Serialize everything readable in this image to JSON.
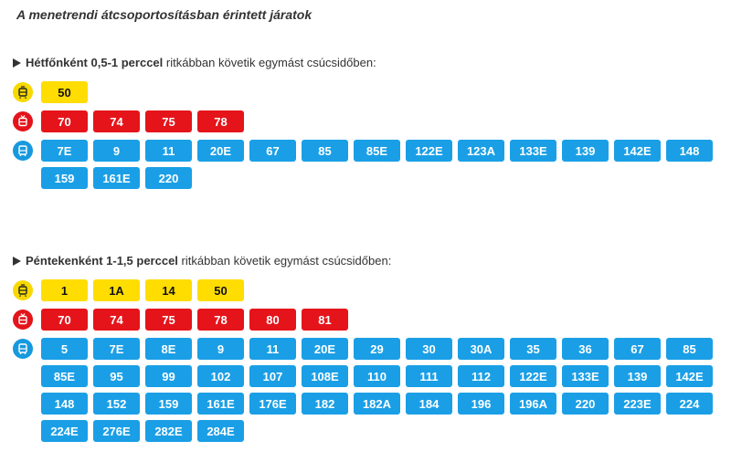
{
  "title": "A menetrendi átcsoportosításban érintett járatok",
  "colors": {
    "tram": "#ffdd00",
    "trolley": "#e5141b",
    "bus": "#1a9fe6"
  },
  "sections": [
    {
      "intro_bold": "Hétfőnként 0,5-1 perccel",
      "intro_rest": " ritkábban követik egymást csúcsidőben:",
      "tram": [
        "50"
      ],
      "trolley": [
        "70",
        "74",
        "75",
        "78"
      ],
      "bus": [
        "7E",
        "9",
        "11",
        "20E",
        "67",
        "85",
        "85E",
        "122E",
        "123A",
        "133E",
        "139",
        "142E",
        "148",
        "159",
        "161E",
        "220"
      ]
    },
    {
      "intro_bold": "Péntekenként 1-1,5 perccel",
      "intro_rest": " ritkábban követik egymást csúcsidőben:",
      "tram": [
        "1",
        "1A",
        "14",
        "50"
      ],
      "trolley": [
        "70",
        "74",
        "75",
        "78",
        "80",
        "81"
      ],
      "bus": [
        "5",
        "7E",
        "8E",
        "9",
        "11",
        "20E",
        "29",
        "30",
        "30A",
        "35",
        "36",
        "67",
        "85",
        "85E",
        "95",
        "99",
        "102",
        "107",
        "108E",
        "110",
        "111",
        "112",
        "122E",
        "133E",
        "139",
        "142E",
        "148",
        "152",
        "159",
        "161E",
        "176E",
        "182",
        "182A",
        "184",
        "196",
        "196A",
        "220",
        "223E",
        "224",
        "224E",
        "276E",
        "282E",
        "284E"
      ]
    }
  ],
  "icons": {
    "tram": "tram-icon",
    "trolley": "trolleybus-icon",
    "bus": "bus-icon"
  }
}
